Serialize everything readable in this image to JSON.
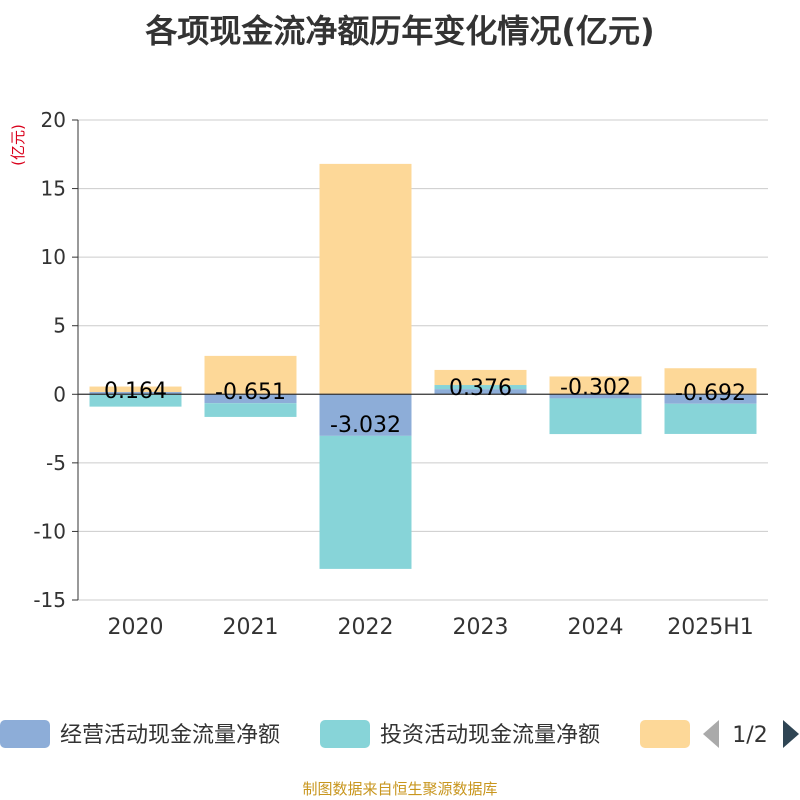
{
  "page": {
    "title": "各项现金流净额历年变化情况(亿元)",
    "source": "制图数据来自恒生聚源数据库",
    "source_color": "#c8961e"
  },
  "legend": {
    "page_indicator": "1/2"
  },
  "colors": {
    "operating": "#8dadd8",
    "investing": "#87d4d8",
    "financing": "#fdd898",
    "unit_label": "#d9001b",
    "axis_text": "#333333",
    "grid": "#cccccc",
    "nav_inactive": "#aaaaaa",
    "nav_active": "#2f4554"
  },
  "chart_data": {
    "type": "bar",
    "stacked": true,
    "categories": [
      "2020",
      "2021",
      "2022",
      "2023",
      "2024",
      "2025H1"
    ],
    "series": [
      {
        "name": "经营活动现金流量净额",
        "values": [
          0.164,
          -0.651,
          -3.032,
          0.376,
          -0.302,
          -0.692
        ]
      },
      {
        "name": "投资活动现金流量净额",
        "values": [
          -0.9,
          -1.0,
          -9.7,
          0.3,
          -2.6,
          -2.2
        ]
      },
      {
        "name": "",
        "values": [
          0.4,
          2.8,
          16.8,
          1.1,
          1.3,
          1.9
        ]
      }
    ],
    "data_labels": [
      "0.164",
      "-0.651",
      "-3.032",
      "0.376",
      "-0.302",
      "-0.692"
    ],
    "ylabel": "(亿元)",
    "ylim": [
      -15,
      20
    ],
    "yticks": [
      20,
      15,
      10,
      5,
      0,
      -5,
      -10,
      -15
    ],
    "grid": true,
    "legend_position": "bottom"
  }
}
